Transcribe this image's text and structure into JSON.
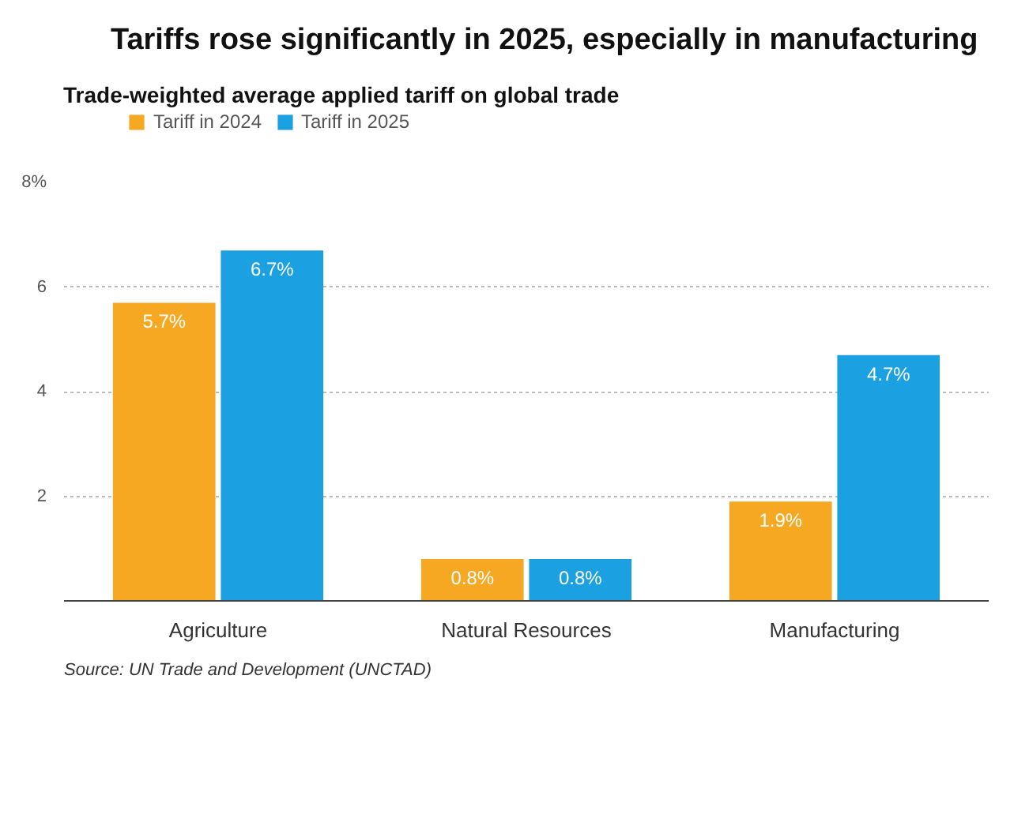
{
  "chart_data": {
    "type": "bar",
    "title": "Tariffs rose significantly in 2025, especially in manufacturing",
    "subtitle": "Trade-weighted average applied tariff on global trade",
    "categories": [
      "Agriculture",
      "Natural Resources",
      "Manufacturing"
    ],
    "series": [
      {
        "name": "Tariff in 2024",
        "color": "#f7a823",
        "values": [
          5.7,
          0.8,
          1.9
        ],
        "value_labels": [
          "5.7%",
          "0.8%",
          "1.9%"
        ]
      },
      {
        "name": "Tariff in 2025",
        "color": "#1ba1e2",
        "values": [
          6.7,
          0.8,
          4.7
        ],
        "value_labels": [
          "6.7%",
          "0.8%",
          "4.7%"
        ]
      }
    ],
    "ylim": [
      0,
      8
    ],
    "yticks": [
      2,
      4,
      6,
      {
        "value": 8,
        "label": "8%"
      }
    ],
    "grid": "y",
    "legend": "top left",
    "annotations": [
      "Source: UN Trade and Development (UNCTAD)"
    ]
  }
}
